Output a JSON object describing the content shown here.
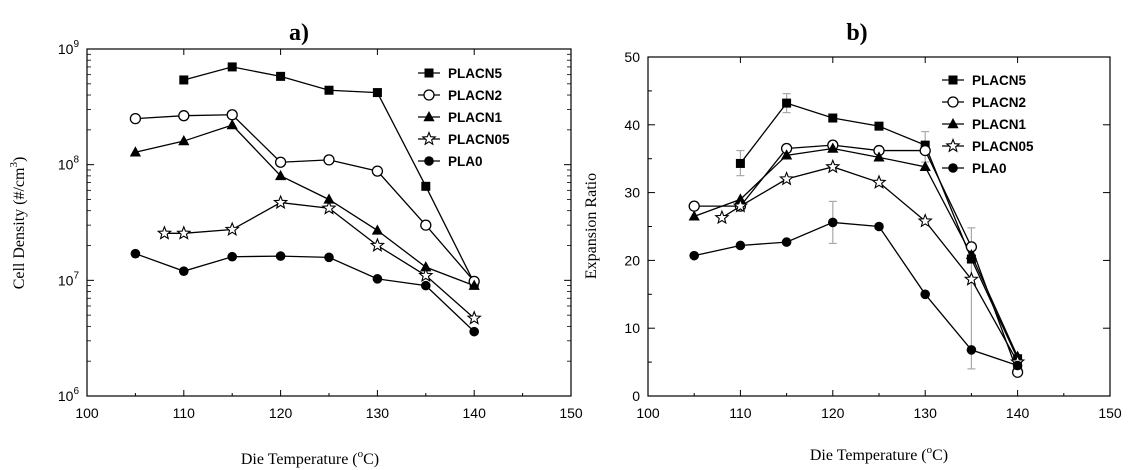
{
  "chart_data": [
    {
      "panel": "a)",
      "type": "line",
      "xlabel": "Die Temperature",
      "xlabel_sup": "o",
      "xlabel_unit": "C",
      "ylabel": "Cell Density (#/cm",
      "ylabel_sup": "3",
      "ylabel_end": ")",
      "yscale": "log",
      "xlim": [
        100,
        150
      ],
      "ylim": [
        1000000,
        1000000000
      ],
      "xticks": [
        "100",
        "110",
        "120",
        "130",
        "140",
        "150"
      ],
      "yticks": [
        {
          "value": 1000000,
          "base": "10",
          "exp": "6"
        },
        {
          "value": 10000000,
          "base": "10",
          "exp": "7"
        },
        {
          "value": 100000000,
          "base": "10",
          "exp": "8"
        },
        {
          "value": 1000000000,
          "base": "10",
          "exp": "9"
        }
      ],
      "legend_position": "top-right",
      "series": [
        {
          "name": "PLACN5",
          "marker": "filled-square",
          "x": [
            110,
            115,
            120,
            125,
            130,
            135,
            140
          ],
          "y": [
            540000000,
            700000000,
            580000000,
            440000000,
            420000000,
            65000000,
            9500000
          ]
        },
        {
          "name": "PLACN2",
          "marker": "open-circle",
          "x": [
            105,
            110,
            115,
            120,
            125,
            130,
            135,
            140
          ],
          "y": [
            250000000,
            265000000,
            270000000,
            105000000,
            110000000,
            88000000,
            30000000,
            9800000
          ]
        },
        {
          "name": "PLACN1",
          "marker": "filled-triangle",
          "x": [
            105,
            110,
            115,
            120,
            125,
            130,
            135,
            140
          ],
          "y": [
            128000000,
            160000000,
            220000000,
            80000000,
            50000000,
            27000000,
            13000000,
            9000000
          ]
        },
        {
          "name": "PLACN05",
          "marker": "open-star",
          "x": [
            108,
            110,
            115,
            120,
            125,
            130,
            135,
            140
          ],
          "y": [
            25500000,
            25500000,
            27500000,
            47000000,
            42000000,
            20000000,
            11000000,
            4700000
          ]
        },
        {
          "name": "PLA0",
          "marker": "filled-circle",
          "x": [
            105,
            110,
            115,
            120,
            125,
            130,
            135,
            140
          ],
          "y": [
            17000000,
            12000000,
            16000000,
            16200000,
            15800000,
            10300000,
            9000000,
            3600000
          ]
        }
      ]
    },
    {
      "panel": "b)",
      "type": "line",
      "xlabel": "Die Temperature",
      "xlabel_sup": "o",
      "xlabel_unit": "C",
      "ylabel": "Expansion Ratio",
      "xlim": [
        100,
        150
      ],
      "ylim": [
        0,
        50
      ],
      "xticks": [
        "100",
        "110",
        "120",
        "130",
        "140",
        "150"
      ],
      "yticks": [
        "0",
        "10",
        "20",
        "30",
        "40",
        "50"
      ],
      "legend_position": "top-right",
      "series": [
        {
          "name": "PLACN5",
          "marker": "filled-square",
          "x": [
            110,
            115,
            120,
            125,
            130,
            135,
            140
          ],
          "y": [
            34.3,
            43.2,
            41.0,
            39.8,
            37.0,
            20.2,
            5.5
          ]
        },
        {
          "name": "PLACN2",
          "marker": "open-circle",
          "x": [
            105,
            110,
            115,
            120,
            125,
            130,
            135,
            140
          ],
          "y": [
            28.0,
            28.0,
            36.5,
            37.0,
            36.2,
            36.2,
            22.0,
            3.5
          ]
        },
        {
          "name": "PLACN1",
          "marker": "filled-triangle",
          "x": [
            105,
            110,
            115,
            120,
            125,
            130,
            135,
            140
          ],
          "y": [
            26.5,
            29.0,
            35.5,
            36.5,
            35.2,
            33.8,
            20.8,
            5.8
          ]
        },
        {
          "name": "PLACN05",
          "marker": "open-star",
          "x": [
            108,
            110,
            115,
            120,
            125,
            130,
            135,
            140
          ],
          "y": [
            26.3,
            28.0,
            32.0,
            33.8,
            31.5,
            25.8,
            17.2,
            5.0
          ]
        },
        {
          "name": "PLA0",
          "marker": "filled-circle",
          "x": [
            105,
            110,
            115,
            120,
            125,
            130,
            135,
            140
          ],
          "y": [
            20.7,
            22.2,
            22.7,
            25.6,
            25.0,
            15.0,
            6.8,
            4.5
          ]
        }
      ],
      "error_bars": [
        {
          "x": 110,
          "low": 32.5,
          "high": 36.2
        },
        {
          "x": 115,
          "low": 41.8,
          "high": 44.6
        },
        {
          "x": 120,
          "low": 22.5,
          "high": 28.7
        },
        {
          "x": 130,
          "low": 34.5,
          "high": 39.0
        },
        {
          "x": 135,
          "low": 4.0,
          "high": 24.8
        }
      ]
    }
  ]
}
